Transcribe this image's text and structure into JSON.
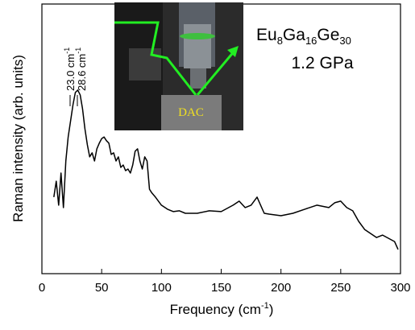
{
  "chart_data": {
    "type": "line",
    "title": [
      "Eu",
      "8",
      "Ga",
      "16",
      "Ge",
      "30"
    ],
    "subtitle": "1.2 GPa",
    "x_label": [
      "Frequency (cm",
      "-1",
      ")"
    ],
    "y_label": "Raman intensity (arb. units)",
    "annotations": [
      {
        "text": "23.0 cm",
        "sup": "-1"
      },
      {
        "text": "28.6 cm",
        "sup": "-1"
      }
    ],
    "inset_label": "DAC",
    "color": "#000000",
    "x": [
      10,
      12,
      14,
      16,
      18,
      20,
      22,
      24,
      26,
      28,
      30,
      32,
      34,
      36,
      38,
      40,
      42,
      44,
      46,
      48,
      50,
      52,
      54,
      56,
      58,
      60,
      62,
      64,
      66,
      68,
      70,
      72,
      74,
      76,
      78,
      80,
      82,
      84,
      86,
      88,
      90,
      92,
      95,
      100,
      105,
      110,
      115,
      120,
      130,
      140,
      150,
      160,
      165,
      170,
      175,
      180,
      183,
      186,
      190,
      200,
      210,
      220,
      230,
      240,
      245,
      250,
      255,
      260,
      265,
      270,
      275,
      280,
      285,
      290,
      295,
      298
    ],
    "values": [
      28.4,
      34.3,
      25.4,
      37.3,
      24.5,
      41.8,
      50.7,
      56.7,
      62.7,
      67.2,
      68.1,
      66.3,
      61.2,
      53.7,
      47.8,
      43.3,
      44.8,
      41.8,
      46.3,
      48.4,
      50.1,
      50.7,
      49.3,
      48.4,
      44.2,
      44.8,
      41.8,
      43.3,
      39.4,
      40.3,
      38.2,
      38.8,
      37.3,
      40.3,
      45.4,
      46.3,
      41.8,
      38.8,
      43.3,
      41.8,
      31.3,
      29.9,
      28.4,
      25.4,
      23.9,
      23.0,
      23.3,
      22.4,
      22.4,
      23.3,
      23.0,
      25.4,
      26.9,
      24.5,
      25.4,
      28.4,
      25.4,
      22.4,
      22.1,
      21.5,
      22.4,
      23.9,
      25.4,
      24.5,
      26.3,
      26.9,
      24.5,
      23.3,
      19.4,
      16.4,
      14.9,
      13.4,
      14.3,
      13.1,
      11.9,
      9.0
    ],
    "xlim": [
      0,
      300
    ],
    "xticks": [
      0,
      50,
      100,
      150,
      200,
      250,
      300
    ],
    "ylim": [
      0,
      100
    ]
  }
}
